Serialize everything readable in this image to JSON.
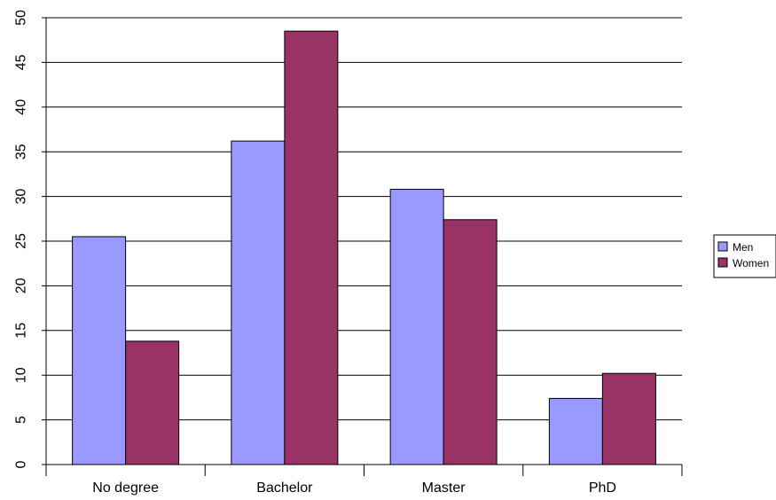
{
  "chart_data": {
    "type": "bar",
    "categories": [
      "No degree",
      "Bachelor",
      "Master",
      "PhD"
    ],
    "series": [
      {
        "name": "Men",
        "values": [
          25.5,
          36.2,
          30.8,
          7.4
        ],
        "color": "#9999ff"
      },
      {
        "name": "Women",
        "values": [
          13.8,
          48.5,
          27.4,
          10.2
        ],
        "color": "#993366"
      }
    ],
    "yticks": [
      "0",
      "5",
      "10",
      "15",
      "20",
      "25",
      "30",
      "35",
      "40",
      "45",
      "50"
    ],
    "ylim": [
      0,
      50
    ],
    "grid": true,
    "legend_position": "right",
    "title": "",
    "xlabel": "",
    "ylabel": ""
  }
}
